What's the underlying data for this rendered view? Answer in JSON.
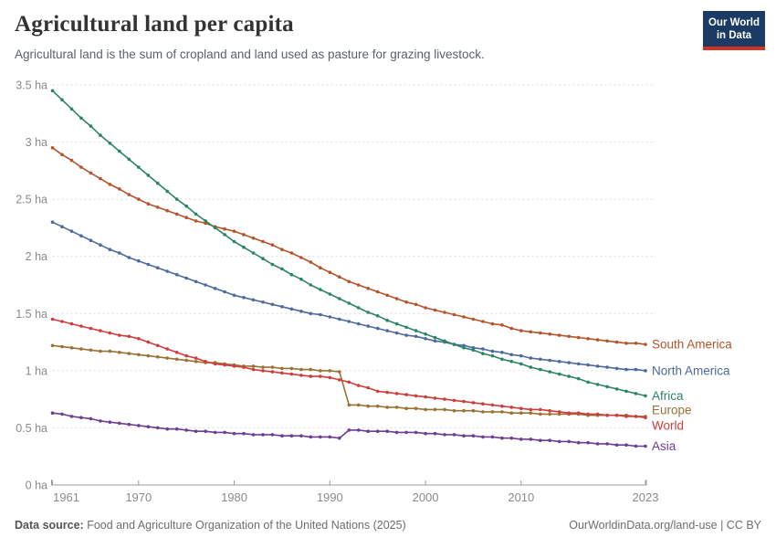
{
  "header": {
    "title": "Agricultural land per capita",
    "subtitle": "Agricultural land is the sum of cropland and land used as pasture for grazing livestock.",
    "logo": {
      "line1": "Our World",
      "line2": "in Data",
      "bg_color": "#1b3a64",
      "accent_color": "#d13327"
    }
  },
  "chart_data": {
    "type": "line",
    "title": "Agricultural land per capita",
    "unit": "ha",
    "grid": "dashed-horizontal",
    "legend_position": "right-end-labels",
    "ylim": [
      0,
      3.5
    ],
    "y_ticks": [
      0,
      0.5,
      1,
      1.5,
      2,
      2.5,
      3,
      3.5
    ],
    "y_tick_labels": [
      "0 ha",
      "0.5 ha",
      "1 ha",
      "1.5 ha",
      "2 ha",
      "2.5 ha",
      "3 ha",
      "3.5 ha"
    ],
    "x_ticks": [
      1961,
      1970,
      1980,
      1990,
      2000,
      2010,
      2023
    ],
    "years": [
      1961,
      1962,
      1963,
      1964,
      1965,
      1966,
      1967,
      1968,
      1969,
      1970,
      1971,
      1972,
      1973,
      1974,
      1975,
      1976,
      1977,
      1978,
      1979,
      1980,
      1981,
      1982,
      1983,
      1984,
      1985,
      1986,
      1987,
      1988,
      1989,
      1990,
      1991,
      1992,
      1993,
      1994,
      1995,
      1996,
      1997,
      1998,
      1999,
      2000,
      2001,
      2002,
      2003,
      2004,
      2005,
      2006,
      2007,
      2008,
      2009,
      2010,
      2011,
      2012,
      2013,
      2014,
      2015,
      2016,
      2017,
      2018,
      2019,
      2020,
      2021,
      2022,
      2023
    ],
    "axis_color": "#9c9c9c",
    "grid_color": "#dcdcdc",
    "tick_label_color": "#8b8b8b",
    "series": [
      {
        "name": "South America",
        "color": "#b5542c",
        "values": [
          2.95,
          2.89,
          2.84,
          2.78,
          2.73,
          2.68,
          2.63,
          2.59,
          2.54,
          2.5,
          2.46,
          2.43,
          2.4,
          2.37,
          2.34,
          2.31,
          2.29,
          2.26,
          2.24,
          2.22,
          2.19,
          2.16,
          2.13,
          2.1,
          2.06,
          2.03,
          1.99,
          1.95,
          1.9,
          1.86,
          1.82,
          1.78,
          1.75,
          1.72,
          1.69,
          1.66,
          1.63,
          1.6,
          1.58,
          1.55,
          1.53,
          1.51,
          1.49,
          1.47,
          1.45,
          1.43,
          1.41,
          1.4,
          1.37,
          1.35,
          1.34,
          1.33,
          1.32,
          1.31,
          1.3,
          1.29,
          1.28,
          1.27,
          1.26,
          1.25,
          1.24,
          1.24,
          1.23
        ]
      },
      {
        "name": "North America",
        "color": "#4c6a9c",
        "values": [
          2.3,
          2.26,
          2.22,
          2.18,
          2.14,
          2.1,
          2.06,
          2.03,
          1.99,
          1.96,
          1.93,
          1.9,
          1.87,
          1.84,
          1.81,
          1.78,
          1.75,
          1.72,
          1.69,
          1.66,
          1.64,
          1.62,
          1.6,
          1.58,
          1.56,
          1.54,
          1.52,
          1.5,
          1.49,
          1.47,
          1.45,
          1.43,
          1.41,
          1.39,
          1.37,
          1.35,
          1.33,
          1.31,
          1.3,
          1.28,
          1.26,
          1.25,
          1.23,
          1.22,
          1.2,
          1.19,
          1.17,
          1.16,
          1.14,
          1.13,
          1.11,
          1.1,
          1.09,
          1.08,
          1.07,
          1.06,
          1.05,
          1.04,
          1.03,
          1.02,
          1.01,
          1.01,
          1.0
        ]
      },
      {
        "name": "Africa",
        "color": "#2c8465",
        "values": [
          3.45,
          3.37,
          3.29,
          3.21,
          3.14,
          3.06,
          2.99,
          2.92,
          2.85,
          2.78,
          2.71,
          2.64,
          2.57,
          2.5,
          2.44,
          2.37,
          2.31,
          2.25,
          2.19,
          2.13,
          2.08,
          2.03,
          1.98,
          1.93,
          1.89,
          1.84,
          1.8,
          1.75,
          1.71,
          1.67,
          1.63,
          1.59,
          1.55,
          1.51,
          1.48,
          1.44,
          1.41,
          1.38,
          1.35,
          1.32,
          1.29,
          1.26,
          1.23,
          1.2,
          1.18,
          1.15,
          1.13,
          1.1,
          1.08,
          1.06,
          1.03,
          1.01,
          0.99,
          0.97,
          0.95,
          0.93,
          0.9,
          0.88,
          0.86,
          0.84,
          0.82,
          0.8,
          0.78
        ]
      },
      {
        "name": "Europe",
        "color": "#9a7234",
        "values": [
          1.22,
          1.21,
          1.2,
          1.19,
          1.18,
          1.17,
          1.17,
          1.16,
          1.15,
          1.14,
          1.13,
          1.12,
          1.11,
          1.1,
          1.09,
          1.08,
          1.07,
          1.07,
          1.06,
          1.05,
          1.04,
          1.04,
          1.03,
          1.03,
          1.02,
          1.02,
          1.01,
          1.01,
          1.0,
          1.0,
          0.99,
          0.7,
          0.7,
          0.69,
          0.69,
          0.68,
          0.68,
          0.67,
          0.67,
          0.66,
          0.66,
          0.66,
          0.65,
          0.65,
          0.65,
          0.64,
          0.64,
          0.64,
          0.63,
          0.63,
          0.63,
          0.62,
          0.62,
          0.62,
          0.62,
          0.62,
          0.61,
          0.61,
          0.61,
          0.61,
          0.61,
          0.6,
          0.6
        ]
      },
      {
        "name": "World",
        "color": "#cf3d3d",
        "values": [
          1.45,
          1.43,
          1.41,
          1.39,
          1.37,
          1.35,
          1.33,
          1.31,
          1.3,
          1.28,
          1.25,
          1.22,
          1.19,
          1.16,
          1.13,
          1.11,
          1.08,
          1.06,
          1.05,
          1.04,
          1.03,
          1.01,
          1.0,
          0.99,
          0.98,
          0.97,
          0.96,
          0.95,
          0.95,
          0.94,
          0.92,
          0.9,
          0.87,
          0.85,
          0.82,
          0.81,
          0.8,
          0.79,
          0.78,
          0.77,
          0.76,
          0.75,
          0.74,
          0.73,
          0.72,
          0.71,
          0.7,
          0.69,
          0.68,
          0.67,
          0.66,
          0.66,
          0.65,
          0.64,
          0.63,
          0.63,
          0.62,
          0.62,
          0.61,
          0.61,
          0.6,
          0.6,
          0.59
        ]
      },
      {
        "name": "Asia",
        "color": "#6d3e91",
        "values": [
          0.63,
          0.62,
          0.6,
          0.59,
          0.58,
          0.56,
          0.55,
          0.54,
          0.53,
          0.52,
          0.51,
          0.5,
          0.49,
          0.49,
          0.48,
          0.47,
          0.47,
          0.46,
          0.46,
          0.45,
          0.45,
          0.44,
          0.44,
          0.44,
          0.43,
          0.43,
          0.43,
          0.42,
          0.42,
          0.42,
          0.41,
          0.48,
          0.48,
          0.47,
          0.47,
          0.47,
          0.46,
          0.46,
          0.46,
          0.45,
          0.45,
          0.44,
          0.44,
          0.43,
          0.43,
          0.42,
          0.42,
          0.41,
          0.41,
          0.4,
          0.4,
          0.39,
          0.39,
          0.38,
          0.38,
          0.37,
          0.37,
          0.36,
          0.36,
          0.35,
          0.35,
          0.34,
          0.34
        ]
      }
    ]
  },
  "footer": {
    "source_label": "Data source:",
    "source_text": " Food and Agriculture Organization of the United Nations (2025)",
    "credit": "OurWorldinData.org/land-use | CC BY"
  }
}
